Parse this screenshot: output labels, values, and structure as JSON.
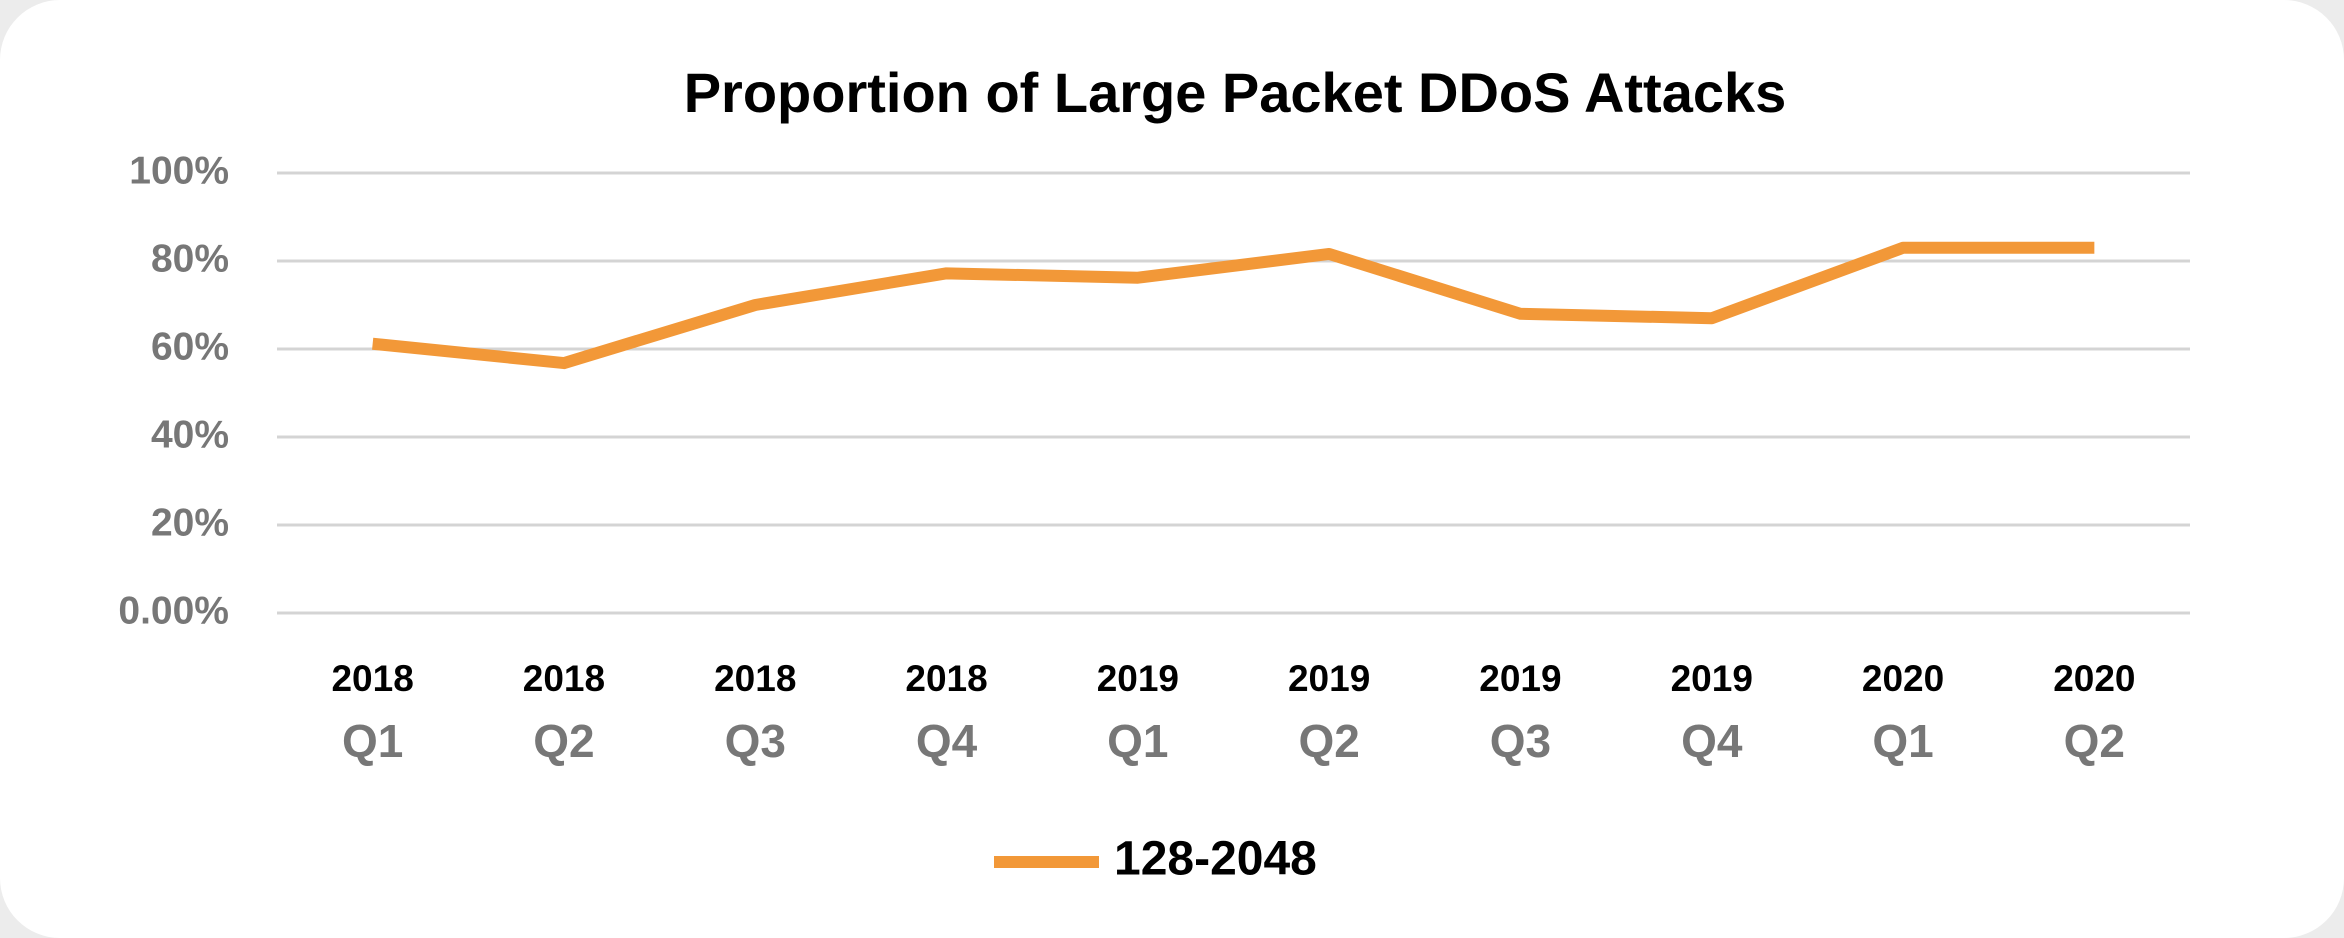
{
  "chart_data": {
    "type": "line",
    "title": "Proportion of Large Packet DDoS Attacks",
    "categories": [
      [
        "2018",
        "Q1"
      ],
      [
        "2018",
        "Q2"
      ],
      [
        "2018",
        "Q3"
      ],
      [
        "2018",
        "Q4"
      ],
      [
        "2019",
        "Q1"
      ],
      [
        "2019",
        "Q2"
      ],
      [
        "2019",
        "Q3"
      ],
      [
        "2019",
        "Q4"
      ],
      [
        "2020",
        "Q1"
      ],
      [
        "2020",
        "Q2"
      ]
    ],
    "series": [
      {
        "name": "128-2048",
        "color": "#f29838",
        "values": [
          61.2,
          56.8,
          70,
          77.2,
          76.2,
          81.6,
          68,
          67,
          83,
          83
        ]
      }
    ],
    "ylim": [
      0,
      100
    ],
    "yticks": [
      {
        "value": 0,
        "label": "0.00%"
      },
      {
        "value": 20,
        "label": "20%"
      },
      {
        "value": 40,
        "label": "40%"
      },
      {
        "value": 60,
        "label": "60%"
      },
      {
        "value": 80,
        "label": "80%"
      },
      {
        "value": 100,
        "label": "100%"
      }
    ],
    "grid": true,
    "legend": "bottom"
  }
}
